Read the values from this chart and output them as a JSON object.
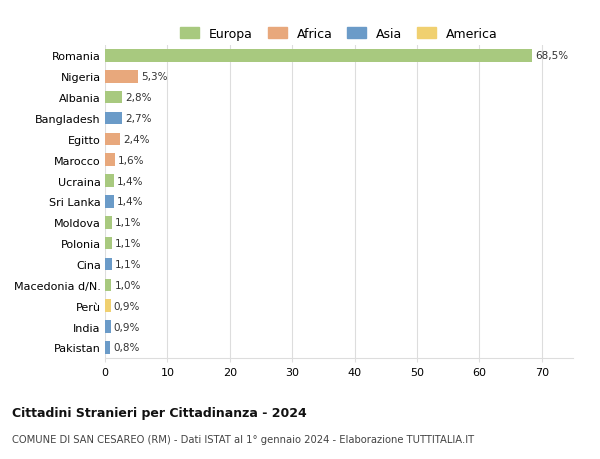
{
  "countries": [
    "Romania",
    "Nigeria",
    "Albania",
    "Bangladesh",
    "Egitto",
    "Marocco",
    "Ucraina",
    "Sri Lanka",
    "Moldova",
    "Polonia",
    "Cina",
    "Macedonia d/N.",
    "Perù",
    "India",
    "Pakistan"
  ],
  "values": [
    68.5,
    5.3,
    2.8,
    2.7,
    2.4,
    1.6,
    1.4,
    1.4,
    1.1,
    1.1,
    1.1,
    1.0,
    0.9,
    0.9,
    0.8
  ],
  "labels": [
    "68,5%",
    "5,3%",
    "2,8%",
    "2,7%",
    "2,4%",
    "1,6%",
    "1,4%",
    "1,4%",
    "1,1%",
    "1,1%",
    "1,1%",
    "1,0%",
    "0,9%",
    "0,9%",
    "0,8%"
  ],
  "continents": [
    "Europa",
    "Africa",
    "Europa",
    "Asia",
    "Africa",
    "Africa",
    "Europa",
    "Asia",
    "Europa",
    "Europa",
    "Asia",
    "Europa",
    "America",
    "Asia",
    "Asia"
  ],
  "continent_colors": {
    "Europa": "#a8c97f",
    "Africa": "#e8a87c",
    "Asia": "#6b9bc8",
    "America": "#f0d070"
  },
  "legend_labels": [
    "Europa",
    "Africa",
    "Asia",
    "America"
  ],
  "legend_colors": [
    "#a8c97f",
    "#e8a87c",
    "#6b9bc8",
    "#f0d070"
  ],
  "xlim": [
    0,
    75
  ],
  "xticks": [
    0,
    10,
    20,
    30,
    40,
    50,
    60,
    70
  ],
  "title": "Cittadini Stranieri per Cittadinanza - 2024",
  "subtitle": "COMUNE DI SAN CESAREO (RM) - Dati ISTAT al 1° gennaio 2024 - Elaborazione TUTTITALIA.IT",
  "background_color": "#ffffff",
  "grid_color": "#dddddd",
  "bar_height": 0.6
}
